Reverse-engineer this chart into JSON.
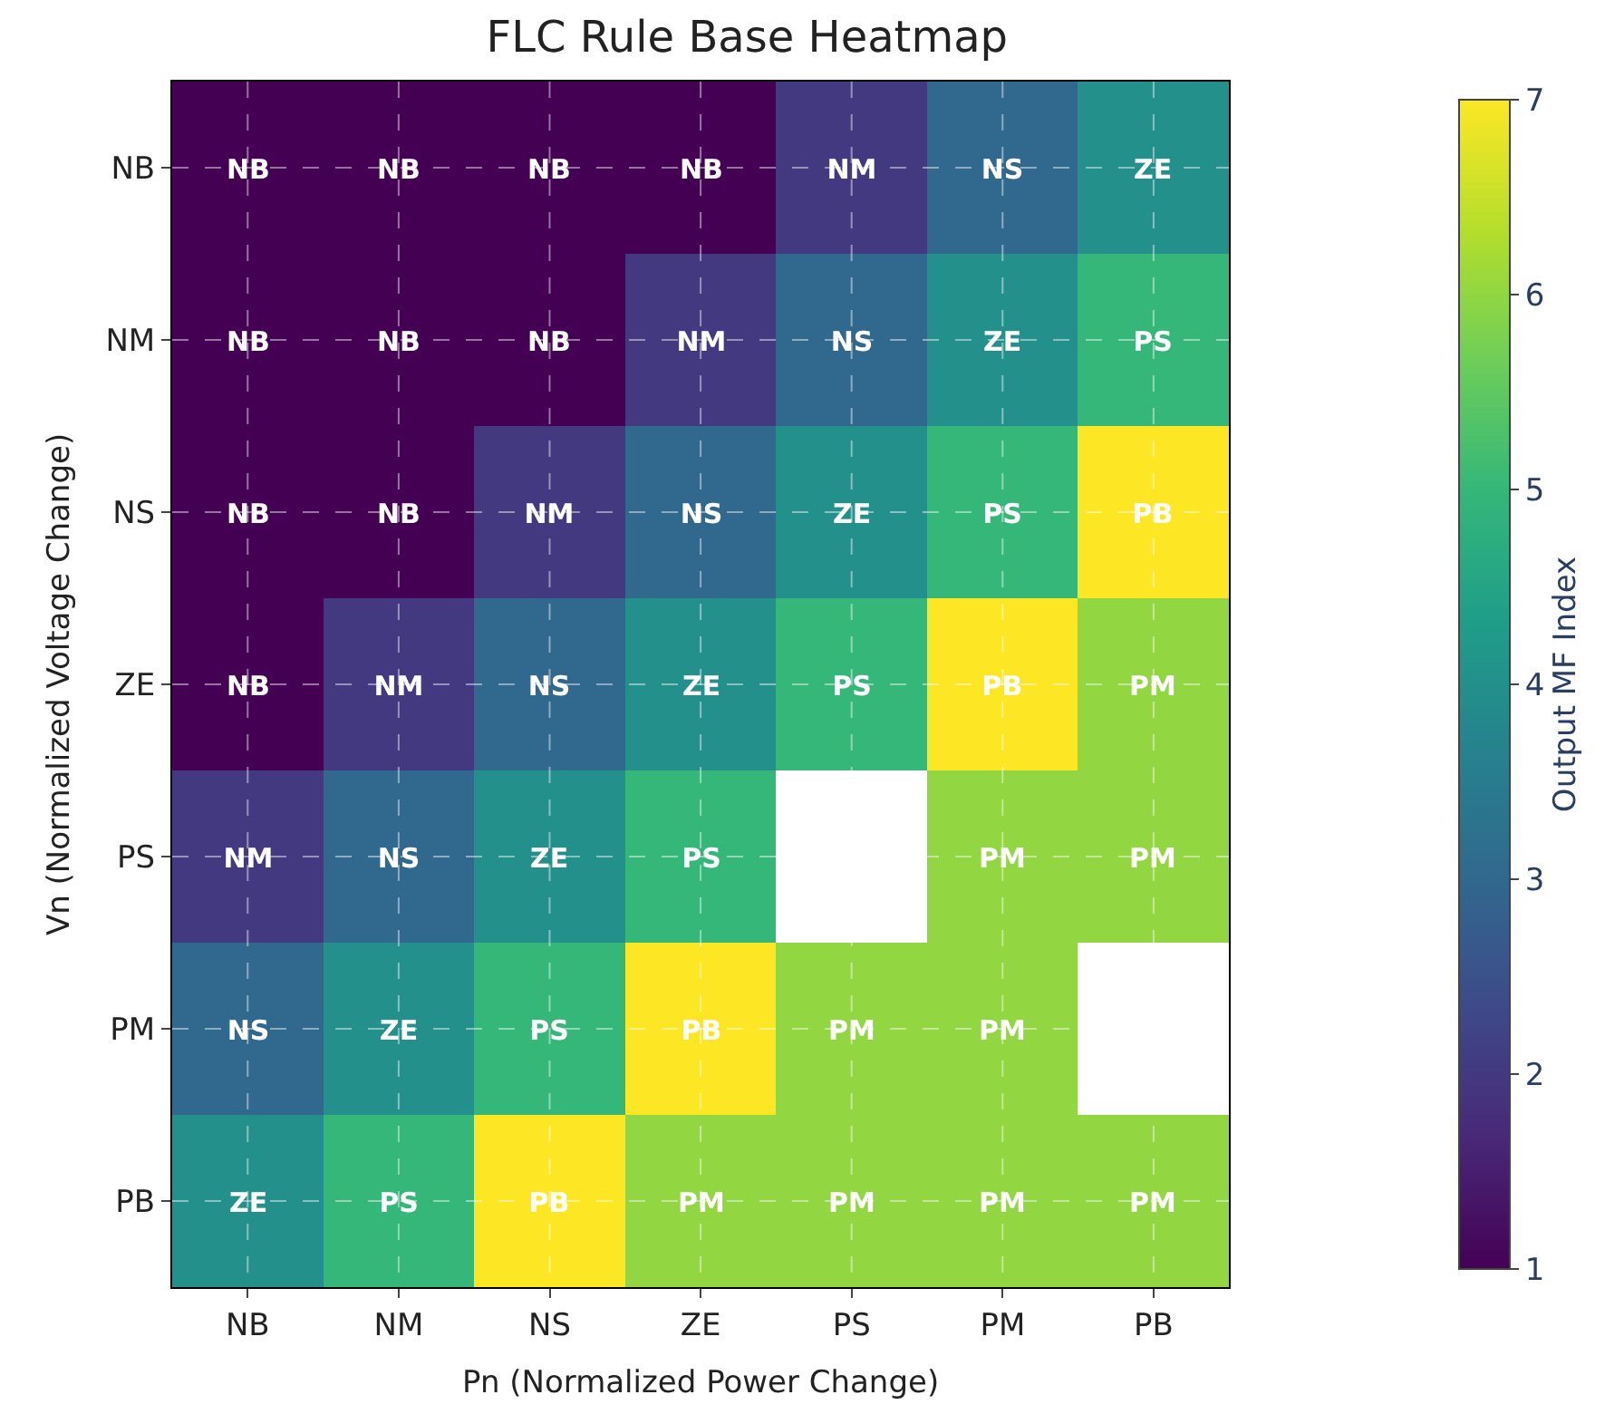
{
  "chart_data": {
    "type": "heatmap",
    "title": "FLC Rule Base Heatmap",
    "xlabel": "Pn (Normalized Power Change)",
    "ylabel": "Vn (Normalized Voltage Change)",
    "clabel": "Output MF Index",
    "categories": [
      "NB",
      "NM",
      "NS",
      "ZE",
      "PS",
      "PM",
      "PB"
    ],
    "y_categories": [
      "NB",
      "NM",
      "NS",
      "ZE",
      "PS",
      "PM",
      "PB"
    ],
    "cells": [
      [
        1,
        1,
        1,
        1,
        2,
        3,
        4
      ],
      [
        1,
        1,
        1,
        2,
        3,
        4,
        5
      ],
      [
        1,
        1,
        2,
        3,
        4,
        5,
        7
      ],
      [
        1,
        2,
        3,
        4,
        5,
        7,
        6
      ],
      [
        2,
        3,
        4,
        5,
        null,
        6,
        6
      ],
      [
        3,
        4,
        5,
        7,
        6,
        6,
        null
      ],
      [
        4,
        5,
        7,
        6,
        6,
        6,
        6
      ]
    ],
    "cell_labels": [
      [
        "NB",
        "NB",
        "NB",
        "NB",
        "NM",
        "NS",
        "ZE"
      ],
      [
        "NB",
        "NB",
        "NB",
        "NM",
        "NS",
        "ZE",
        "PS"
      ],
      [
        "NB",
        "NB",
        "NM",
        "NS",
        "ZE",
        "PS",
        "PB"
      ],
      [
        "NB",
        "NM",
        "NS",
        "ZE",
        "PS",
        "PB",
        "PM"
      ],
      [
        "NM",
        "NS",
        "ZE",
        "PS",
        null,
        "PM",
        "PM"
      ],
      [
        "NS",
        "ZE",
        "PS",
        "PB",
        "PM",
        "PM",
        null
      ],
      [
        "ZE",
        "PS",
        "PB",
        "PM",
        "PM",
        "PM",
        "PM"
      ]
    ],
    "clim": [
      1,
      7
    ],
    "cticks": [
      1,
      2,
      3,
      4,
      5,
      6,
      7
    ],
    "grid": true
  }
}
